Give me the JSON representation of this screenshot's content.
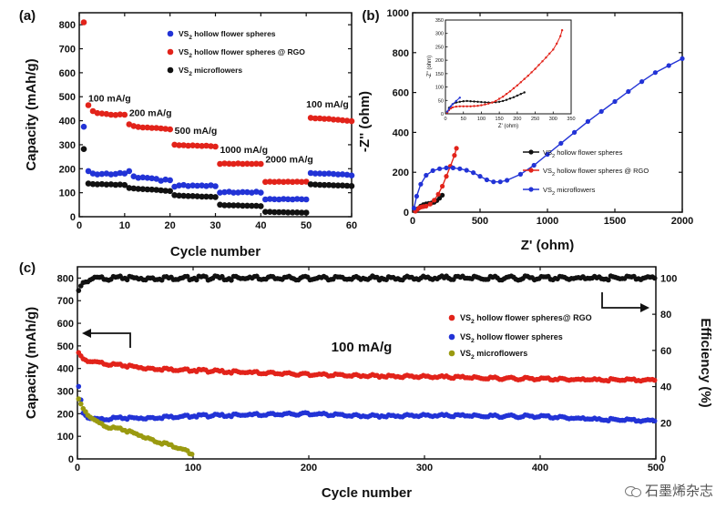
{
  "watermark": "石墨烯杂志",
  "colors": {
    "red": "#e2231a",
    "blue": "#2233d6",
    "black": "#111111",
    "olive": "#9a9a10"
  },
  "chart_data": [
    {
      "panel": "(a)",
      "type": "scatter",
      "xlabel": "Cycle number",
      "ylabel": "Capacity (mAh/g)",
      "xlim": [
        0,
        60
      ],
      "ylim": [
        0,
        850
      ],
      "xticks": [
        0,
        10,
        20,
        30,
        40,
        50,
        60
      ],
      "yticks": [
        0,
        100,
        200,
        300,
        400,
        500,
        600,
        700,
        800
      ],
      "legend": [
        "VS2 hollow flower spheres",
        "VS2 hollow flower spheres @ RGO",
        "VS2 microflowers"
      ],
      "legend_position": "top-right",
      "annotations": [
        {
          "text": "100 mA/g",
          "x": 2,
          "y": 480
        },
        {
          "text": "200 mA/g",
          "x": 11,
          "y": 420
        },
        {
          "text": "500 mA/g",
          "x": 21,
          "y": 345
        },
        {
          "text": "1000 mA/g",
          "x": 31,
          "y": 265
        },
        {
          "text": "2000 mA/g",
          "x": 41,
          "y": 225
        },
        {
          "text": "100 mA/g",
          "x": 50,
          "y": 455
        }
      ],
      "series": [
        {
          "name": "VS2 hollow flower spheres",
          "color": "blue",
          "x": [
            1,
            2,
            3,
            4,
            5,
            6,
            7,
            8,
            9,
            10,
            11,
            12,
            13,
            14,
            15,
            16,
            17,
            18,
            19,
            20,
            21,
            22,
            23,
            24,
            25,
            26,
            27,
            28,
            29,
            30,
            31,
            32,
            33,
            34,
            35,
            36,
            37,
            38,
            39,
            40,
            41,
            42,
            43,
            44,
            45,
            46,
            47,
            48,
            49,
            50,
            51,
            52,
            53,
            54,
            55,
            56,
            57,
            58,
            59,
            60
          ],
          "y": [
            375,
            190,
            180,
            176,
            178,
            180,
            176,
            178,
            182,
            180,
            190,
            168,
            162,
            164,
            162,
            160,
            158,
            150,
            155,
            152,
            125,
            130,
            132,
            128,
            130,
            129,
            130,
            128,
            131,
            127,
            100,
            102,
            104,
            100,
            101,
            103,
            102,
            100,
            104,
            100,
            72,
            74,
            73,
            72,
            74,
            73,
            72,
            74,
            73,
            72,
            182,
            180,
            180,
            179,
            180,
            178,
            176,
            177,
            175,
            172
          ]
        },
        {
          "name": "VS2 hollow flower spheres @ RGO",
          "color": "red",
          "x": [
            1,
            2,
            3,
            4,
            5,
            6,
            7,
            8,
            9,
            10,
            11,
            12,
            13,
            14,
            15,
            16,
            17,
            18,
            19,
            20,
            21,
            22,
            23,
            24,
            25,
            26,
            27,
            28,
            29,
            30,
            31,
            32,
            33,
            34,
            35,
            36,
            37,
            38,
            39,
            40,
            41,
            42,
            43,
            44,
            45,
            46,
            47,
            48,
            49,
            50,
            51,
            52,
            53,
            54,
            55,
            56,
            57,
            58,
            59,
            60
          ],
          "y": [
            810,
            465,
            440,
            432,
            430,
            428,
            425,
            424,
            426,
            425,
            385,
            378,
            374,
            372,
            372,
            370,
            370,
            368,
            366,
            364,
            300,
            298,
            298,
            296,
            297,
            296,
            295,
            296,
            294,
            292,
            220,
            222,
            221,
            220,
            222,
            220,
            221,
            220,
            221,
            220,
            145,
            146,
            145,
            146,
            145,
            146,
            145,
            146,
            145,
            146,
            412,
            410,
            410,
            408,
            408,
            405,
            404,
            402,
            400,
            398
          ]
        },
        {
          "name": "VS2 microflowers",
          "color": "black",
          "x": [
            1,
            2,
            3,
            4,
            5,
            6,
            7,
            8,
            9,
            10,
            11,
            12,
            13,
            14,
            15,
            16,
            17,
            18,
            19,
            20,
            21,
            22,
            23,
            24,
            25,
            26,
            27,
            28,
            29,
            30,
            31,
            32,
            33,
            34,
            35,
            36,
            37,
            38,
            39,
            40,
            41,
            42,
            43,
            44,
            45,
            46,
            47,
            48,
            49,
            50,
            51,
            52,
            53,
            54,
            55,
            56,
            57,
            58,
            59,
            60
          ],
          "y": [
            282,
            138,
            136,
            135,
            136,
            134,
            135,
            133,
            134,
            132,
            120,
            118,
            116,
            115,
            114,
            113,
            112,
            110,
            108,
            107,
            90,
            88,
            87,
            86,
            86,
            85,
            84,
            84,
            83,
            82,
            50,
            48,
            48,
            47,
            47,
            46,
            46,
            45,
            45,
            44,
            20,
            20,
            19,
            19,
            19,
            18,
            18,
            18,
            17,
            17,
            135,
            134,
            133,
            132,
            132,
            131,
            130,
            130,
            129,
            128
          ]
        }
      ]
    },
    {
      "panel": "(b)",
      "type": "line",
      "xlabel": "Z' (ohm)",
      "ylabel": "-Z'' (ohm)",
      "xlim": [
        0,
        2000
      ],
      "ylim": [
        0,
        1000
      ],
      "xticks": [
        0,
        500,
        1000,
        1500,
        2000
      ],
      "yticks": [
        0,
        200,
        400,
        600,
        800,
        1000
      ],
      "legend": [
        "VS2 hollow flower spheres",
        "VS2 hollow flower spheres @ RGO",
        "VS2 microflowers"
      ],
      "legend_position": "bottom-center",
      "series": [
        {
          "name": "VS2 hollow flower spheres",
          "color": "black",
          "x": [
            20,
            40,
            60,
            80,
            100,
            120,
            140,
            160,
            180,
            200,
            220
          ],
          "y": [
            5,
            18,
            30,
            38,
            42,
            44,
            46,
            50,
            58,
            70,
            85
          ]
        },
        {
          "name": "VS2 hollow flower spheres @ RGO",
          "color": "red",
          "x": [
            20,
            35,
            50,
            65,
            80,
            100,
            130,
            160,
            190,
            220,
            250,
            280,
            310,
            325
          ],
          "y": [
            5,
            14,
            22,
            26,
            28,
            30,
            40,
            60,
            90,
            130,
            180,
            230,
            285,
            320
          ]
        },
        {
          "name": "VS2 microflowers",
          "color": "blue",
          "x": [
            10,
            30,
            60,
            100,
            150,
            200,
            250,
            300,
            350,
            400,
            450,
            500,
            550,
            600,
            650,
            700,
            800,
            900,
            1000,
            1100,
            1200,
            1300,
            1400,
            1500,
            1600,
            1700,
            1800,
            1900,
            2000
          ],
          "y": [
            20,
            80,
            140,
            185,
            208,
            218,
            222,
            222,
            218,
            210,
            198,
            180,
            162,
            152,
            152,
            160,
            190,
            235,
            290,
            345,
            400,
            455,
            505,
            555,
            605,
            655,
            700,
            735,
            770
          ]
        }
      ],
      "inset": {
        "xlabel": "Z' (ohm)",
        "ylabel": "-Z'' (ohm)",
        "xlim": [
          0,
          350
        ],
        "ylim": [
          0,
          350
        ],
        "xticks": [
          0,
          50,
          100,
          150,
          200,
          250,
          300,
          350
        ],
        "yticks": [
          0,
          50,
          100,
          150,
          200,
          250,
          300,
          350
        ],
        "series": [
          {
            "name": "black",
            "color": "black",
            "x": [
              5,
              10,
              20,
              30,
              40,
              50,
              60,
              70,
              80,
              90,
              100,
              110,
              120,
              130,
              140,
              150,
              160,
              170,
              180,
              190,
              200,
              210,
              220
            ],
            "y": [
              5,
              22,
              36,
              42,
              45,
              47,
              48,
              47,
              46,
              45,
              44,
              43,
              42,
              42,
              43,
              45,
              48,
              52,
              57,
              62,
              68,
              74,
              80
            ]
          },
          {
            "name": "red",
            "color": "red",
            "x": [
              5,
              10,
              15,
              20,
              30,
              40,
              50,
              60,
              70,
              80,
              90,
              100,
              110,
              120,
              130,
              140,
              150,
              160,
              170,
              180,
              190,
              200,
              210,
              220,
              230,
              240,
              250,
              260,
              270,
              280,
              290,
              300,
              310,
              320,
              325
            ],
            "y": [
              4,
              14,
              20,
              24,
              27,
              28,
              28,
              28,
              28,
              29,
              30,
              32,
              35,
              38,
              42,
              48,
              56,
              64,
              74,
              84,
              95,
              106,
              118,
              130,
              142,
              155,
              168,
              182,
              196,
              210,
              225,
              240,
              262,
              290,
              312
            ]
          },
          {
            "name": "blue",
            "color": "blue",
            "x": [
              5,
              10,
              15,
              20,
              30,
              40
            ],
            "y": [
              8,
              18,
              28,
              36,
              48,
              60
            ]
          }
        ]
      }
    },
    {
      "panel": "(c)",
      "type": "scatter",
      "xlabel": "Cycle number",
      "ylabel": "Capacity (mAh/g)",
      "ylabel_right": "Efficiency (%)",
      "xlim": [
        0,
        500
      ],
      "ylim": [
        0,
        850
      ],
      "ylim_right": [
        0,
        106.25
      ],
      "xticks": [
        0,
        100,
        200,
        300,
        400,
        500
      ],
      "yticks": [
        0,
        100,
        200,
        300,
        400,
        500,
        600,
        700,
        800
      ],
      "yticks_right": [
        0,
        20,
        40,
        60,
        80,
        100
      ],
      "annotation": "100 mA/g",
      "legend": [
        "VS2 hollow flower spheres@ RGO",
        "VS2 hollow flower spheres",
        "VS2 microflowers"
      ],
      "legend_position": "center-right",
      "series": [
        {
          "name": "VS2 hollow flower spheres@ RGO",
          "color": "red",
          "x": [
            1,
            5,
            10,
            20,
            30,
            40,
            50,
            60,
            80,
            100,
            120,
            150,
            200,
            250,
            300,
            350,
            400,
            450,
            500
          ],
          "y": [
            465,
            440,
            432,
            425,
            418,
            412,
            408,
            402,
            396,
            392,
            388,
            382,
            374,
            368,
            364,
            358,
            354,
            350,
            348
          ]
        },
        {
          "name": "VS2 hollow flower spheres",
          "color": "blue",
          "x": [
            1,
            5,
            10,
            20,
            30,
            40,
            60,
            80,
            100,
            150,
            200,
            250,
            300,
            350,
            400,
            450,
            500
          ],
          "y": [
            315,
            200,
            180,
            175,
            180,
            180,
            182,
            186,
            190,
            195,
            200,
            190,
            192,
            190,
            188,
            175,
            168
          ]
        },
        {
          "name": "VS2 microflowers",
          "color": "olive",
          "x": [
            1,
            3,
            5,
            10,
            15,
            20,
            25,
            30,
            40,
            50,
            60,
            70,
            80,
            90,
            95,
            100
          ],
          "y": [
            260,
            240,
            220,
            190,
            170,
            155,
            145,
            138,
            128,
            112,
            95,
            75,
            62,
            45,
            32,
            22
          ]
        },
        {
          "name": "Efficiency",
          "color": "black",
          "axis": "right",
          "x": [
            1,
            3,
            5,
            8,
            10,
            15,
            20,
            30,
            50,
            100,
            150,
            200,
            250,
            300,
            350,
            400,
            450,
            500
          ],
          "y": [
            92,
            95,
            97,
            98,
            99,
            100,
            100,
            100,
            100,
            100,
            100,
            100,
            100,
            100,
            100,
            100,
            100,
            100
          ]
        }
      ]
    }
  ]
}
